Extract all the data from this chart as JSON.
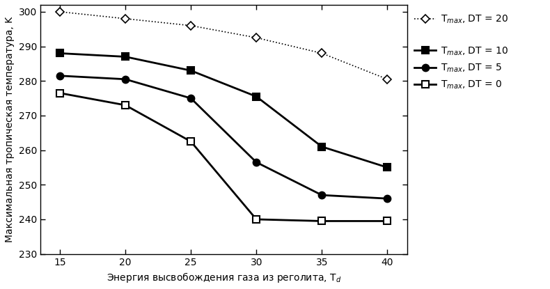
{
  "x": [
    15,
    20,
    25,
    30,
    35,
    40
  ],
  "series": {
    "DT20": {
      "y": [
        300,
        298,
        296,
        292.5,
        288,
        280.5
      ],
      "label_line1": "T",
      "label": "T$_{max}$, DT = 20",
      "marker": "D",
      "linestyle": "dotted",
      "color": "#000000",
      "markersize": 6,
      "linewidth": 1.2,
      "markerfacecolor": "white",
      "markeredgecolor": "#000000",
      "markeredgewidth": 1.2
    },
    "DT10": {
      "y": [
        288,
        287,
        283,
        275.5,
        261,
        255
      ],
      "label": "T$_{max}$, DT = 10",
      "marker": "s",
      "linestyle": "solid",
      "color": "#000000",
      "markersize": 7,
      "linewidth": 2.0,
      "markerfacecolor": "#000000",
      "markeredgecolor": "#000000",
      "markeredgewidth": 1.5
    },
    "DT5": {
      "y": [
        281.5,
        280.5,
        275,
        256.5,
        247,
        246
      ],
      "label": "T$_{max}$, DT = 5",
      "marker": "o",
      "linestyle": "solid",
      "color": "#000000",
      "markersize": 7,
      "linewidth": 2.0,
      "markerfacecolor": "#000000",
      "markeredgecolor": "#000000",
      "markeredgewidth": 1.5
    },
    "DT0": {
      "y": [
        276.5,
        273,
        262.5,
        240,
        239.5,
        239.5
      ],
      "label": "T$_{max}$, DT = 0",
      "marker": "s",
      "linestyle": "solid",
      "color": "#000000",
      "markersize": 7,
      "linewidth": 2.0,
      "markerfacecolor": "white",
      "markeredgecolor": "#000000",
      "markeredgewidth": 1.5
    }
  },
  "xlabel": "Энергия высвобождения газа из реголита, T$_d$",
  "ylabel": "Максимальная тропическая температура, K",
  "xlim": [
    13.5,
    41.5
  ],
  "ylim": [
    230,
    302
  ],
  "xticks": [
    15,
    20,
    25,
    30,
    35,
    40
  ],
  "yticks": [
    230,
    240,
    250,
    260,
    270,
    280,
    290,
    300
  ],
  "background_color": "#ffffff"
}
